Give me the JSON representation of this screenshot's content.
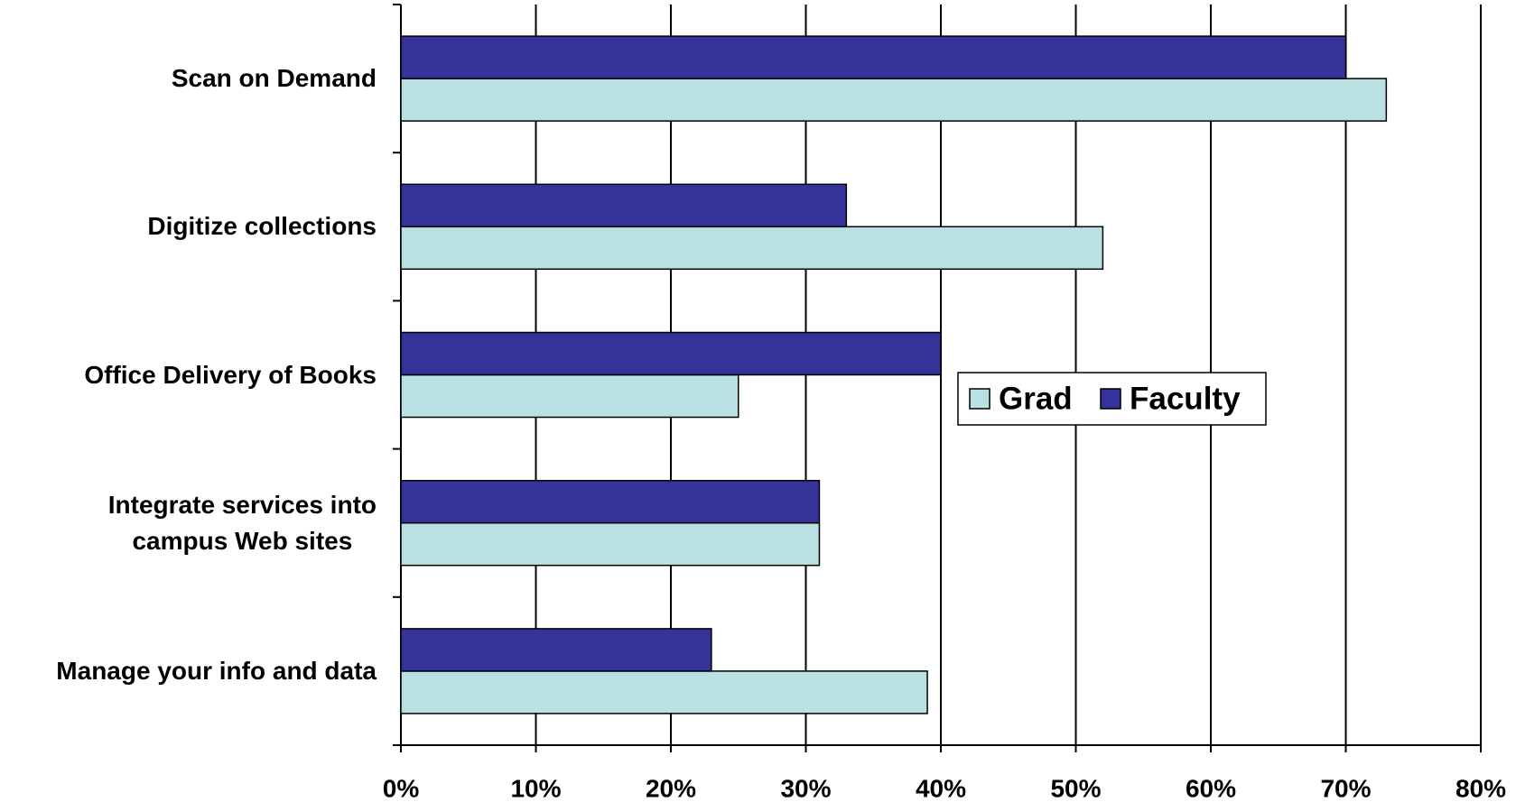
{
  "chart_data": {
    "type": "hbar",
    "categories": [
      "Scan on Demand",
      "Digitize collections",
      "Office Delivery of Books",
      "Integrate services into\ncampus Web sites",
      "Manage your info and data"
    ],
    "series": [
      {
        "name": "Grad",
        "color": "#b9e0e2",
        "values": [
          73,
          52,
          25,
          31,
          39
        ]
      },
      {
        "name": "Faculty",
        "color": "#333399",
        "values": [
          70,
          33,
          40,
          31,
          23
        ]
      }
    ],
    "xlim": [
      0,
      80
    ],
    "xticks": [
      {
        "value": 0,
        "label": "0%"
      },
      {
        "value": 10,
        "label": "10%"
      },
      {
        "value": 20,
        "label": "20%"
      },
      {
        "value": 30,
        "label": "30%"
      },
      {
        "value": 40,
        "label": "40%"
      },
      {
        "value": 50,
        "label": "50%"
      },
      {
        "value": 60,
        "label": "60%"
      },
      {
        "value": 70,
        "label": "70%"
      },
      {
        "value": 80,
        "label": "80%"
      }
    ],
    "grid": true,
    "legend": "right"
  }
}
